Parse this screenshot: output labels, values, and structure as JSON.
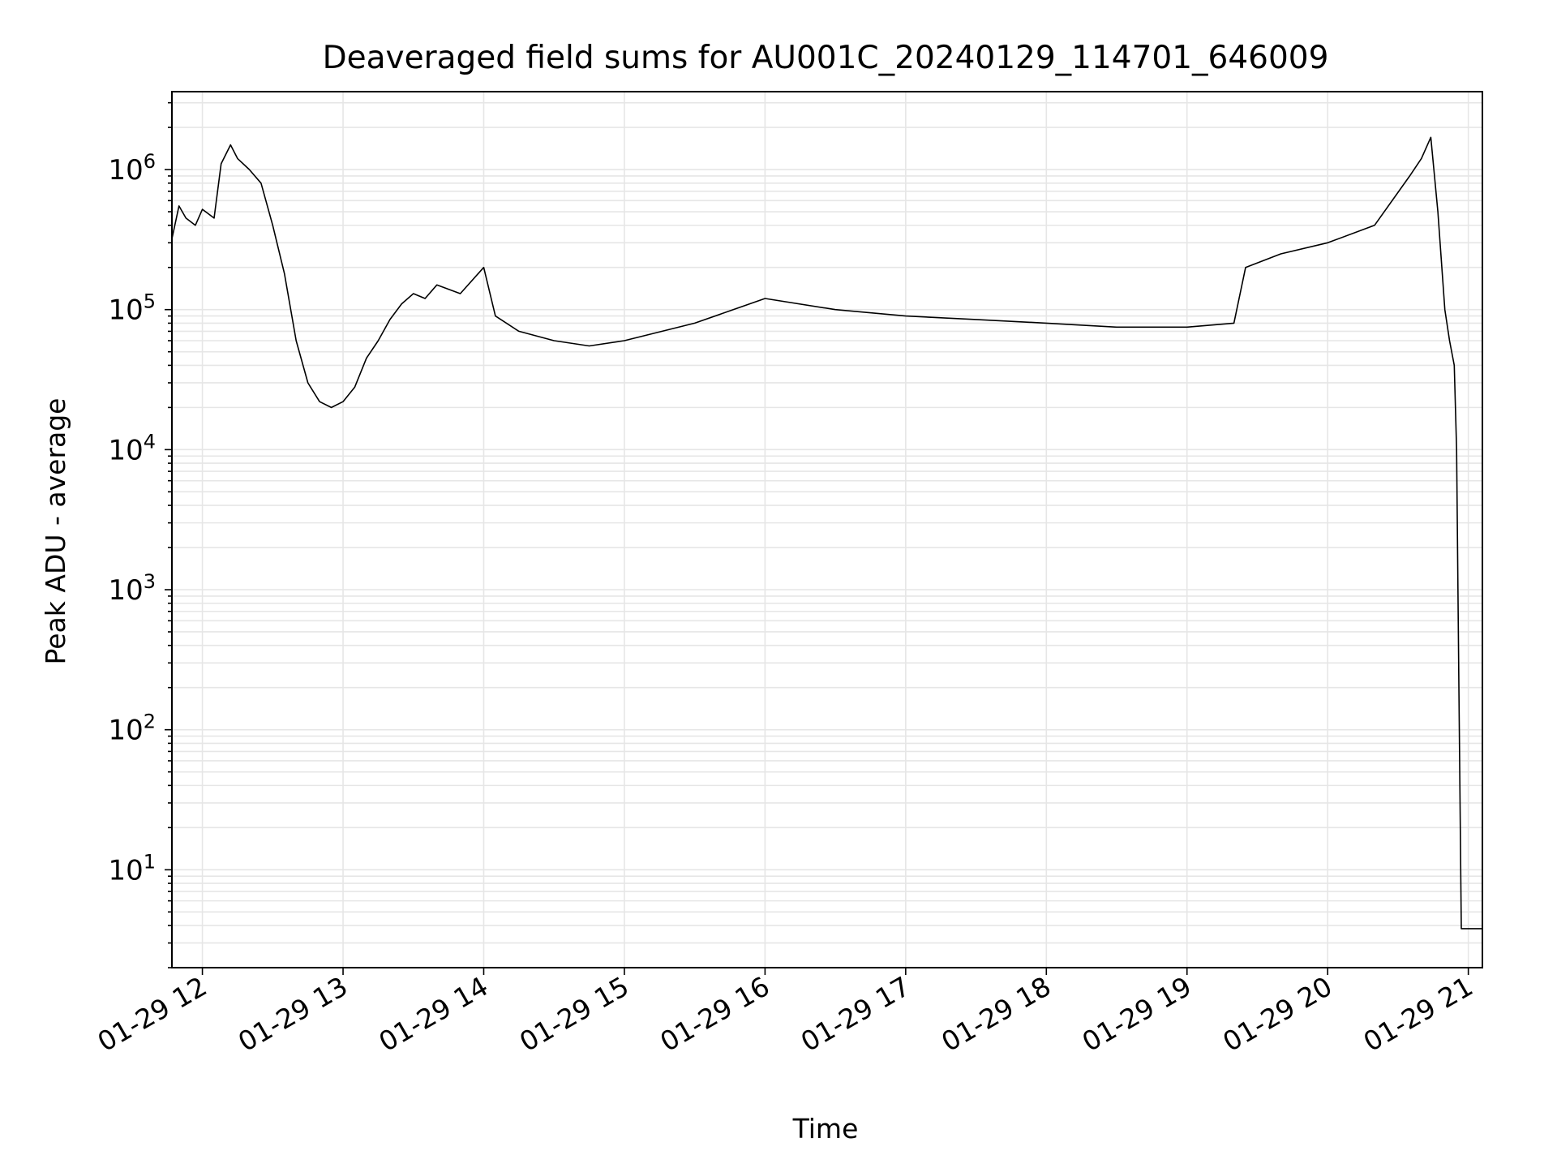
{
  "chart_data": {
    "type": "line",
    "title": "Deaveraged field sums for AU001C_20240129_114701_646009",
    "xlabel": "Time",
    "ylabel": "Peak ADU - average",
    "yscale": "log",
    "grid": true,
    "x_ticks": [
      "01-29 12",
      "01-29 13",
      "01-29 14",
      "01-29 15",
      "01-29 16",
      "01-29 17",
      "01-29 18",
      "01-29 19",
      "01-29 20",
      "01-29 21"
    ],
    "y_ticks": [
      {
        "base": "10",
        "exp": "1",
        "value": 10
      },
      {
        "base": "10",
        "exp": "2",
        "value": 100
      },
      {
        "base": "10",
        "exp": "3",
        "value": 1000
      },
      {
        "base": "10",
        "exp": "4",
        "value": 10000
      },
      {
        "base": "10",
        "exp": "5",
        "value": 100000
      },
      {
        "base": "10",
        "exp": "6",
        "value": 1000000
      }
    ],
    "xlim": [
      "2024-01-29 11:47",
      "2024-01-29 21:06"
    ],
    "ylim": [
      2,
      3600000
    ],
    "series": [
      {
        "color": "#000000",
        "points": [
          [
            "2024-01-29 11:47",
            320000
          ],
          [
            "2024-01-29 11:50",
            550000
          ],
          [
            "2024-01-29 11:53",
            450000
          ],
          [
            "2024-01-29 11:57",
            400000
          ],
          [
            "2024-01-29 12:00",
            520000
          ],
          [
            "2024-01-29 12:05",
            450000
          ],
          [
            "2024-01-29 12:08",
            1100000
          ],
          [
            "2024-01-29 12:12",
            1500000
          ],
          [
            "2024-01-29 12:15",
            1200000
          ],
          [
            "2024-01-29 12:20",
            1000000
          ],
          [
            "2024-01-29 12:25",
            800000
          ],
          [
            "2024-01-29 12:30",
            400000
          ],
          [
            "2024-01-29 12:35",
            180000
          ],
          [
            "2024-01-29 12:40",
            60000
          ],
          [
            "2024-01-29 12:45",
            30000
          ],
          [
            "2024-01-29 12:50",
            22000
          ],
          [
            "2024-01-29 12:55",
            20000
          ],
          [
            "2024-01-29 13:00",
            22000
          ],
          [
            "2024-01-29 13:05",
            28000
          ],
          [
            "2024-01-29 13:10",
            45000
          ],
          [
            "2024-01-29 13:15",
            60000
          ],
          [
            "2024-01-29 13:20",
            85000
          ],
          [
            "2024-01-29 13:25",
            110000
          ],
          [
            "2024-01-29 13:30",
            130000
          ],
          [
            "2024-01-29 13:35",
            120000
          ],
          [
            "2024-01-29 13:40",
            150000
          ],
          [
            "2024-01-29 13:50",
            130000
          ],
          [
            "2024-01-29 14:00",
            200000
          ],
          [
            "2024-01-29 14:05",
            90000
          ],
          [
            "2024-01-29 14:15",
            70000
          ],
          [
            "2024-01-29 14:30",
            60000
          ],
          [
            "2024-01-29 14:45",
            55000
          ],
          [
            "2024-01-29 15:00",
            60000
          ],
          [
            "2024-01-29 15:30",
            80000
          ],
          [
            "2024-01-29 16:00",
            120000
          ],
          [
            "2024-01-29 16:30",
            100000
          ],
          [
            "2024-01-29 17:00",
            90000
          ],
          [
            "2024-01-29 17:30",
            85000
          ],
          [
            "2024-01-29 18:00",
            80000
          ],
          [
            "2024-01-29 18:30",
            75000
          ],
          [
            "2024-01-29 19:00",
            75000
          ],
          [
            "2024-01-29 19:20",
            80000
          ],
          [
            "2024-01-29 19:25",
            200000
          ],
          [
            "2024-01-29 19:40",
            250000
          ],
          [
            "2024-01-29 20:00",
            300000
          ],
          [
            "2024-01-29 20:20",
            400000
          ],
          [
            "2024-01-29 20:35",
            900000
          ],
          [
            "2024-01-29 20:40",
            1200000
          ],
          [
            "2024-01-29 20:44",
            1700000
          ],
          [
            "2024-01-29 20:47",
            500000
          ],
          [
            "2024-01-29 20:50",
            100000
          ],
          [
            "2024-01-29 20:52",
            60000
          ],
          [
            "2024-01-29 20:54",
            40000
          ],
          [
            "2024-01-29 20:55",
            10000
          ],
          [
            "2024-01-29 20:56",
            180
          ],
          [
            "2024-01-29 20:57",
            3.8
          ],
          [
            "2024-01-29 21:06",
            3.8
          ]
        ]
      }
    ]
  }
}
